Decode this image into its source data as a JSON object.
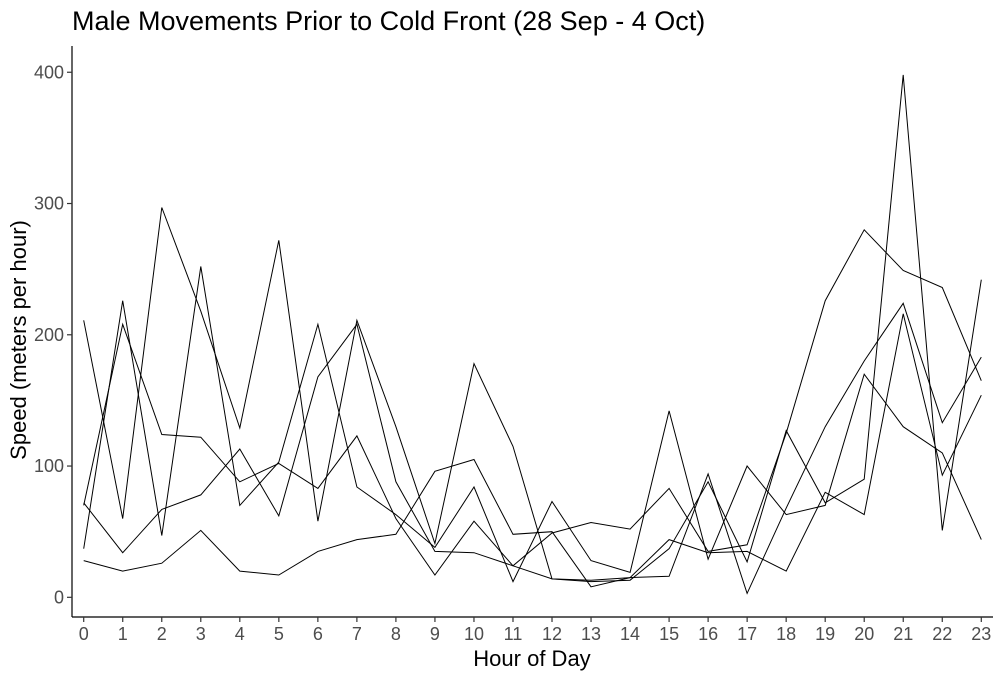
{
  "chart_data": {
    "type": "line",
    "title": "Male Movements Prior to Cold Front (28 Sep - 4 Oct)",
    "xlabel": "Hour of Day",
    "ylabel": "Speed (meters per hour)",
    "x": [
      0,
      1,
      2,
      3,
      4,
      5,
      6,
      7,
      8,
      9,
      10,
      11,
      12,
      13,
      14,
      15,
      16,
      17,
      18,
      19,
      20,
      21,
      22,
      23
    ],
    "xlim": [
      -0.3,
      23.3
    ],
    "ylim": [
      -15,
      420
    ],
    "yticks": [
      0,
      100,
      200,
      300,
      400
    ],
    "grid": false,
    "legend": "none",
    "line_color": "#000000",
    "series": [
      {
        "values": [
          211,
          60,
          297,
          218,
          129,
          272,
          58,
          211,
          130,
          41,
          178,
          115,
          14,
          12,
          13,
          37,
          88,
          27,
          127,
          72,
          90,
          398,
          51,
          242
        ]
      },
      {
        "values": [
          37,
          226,
          47,
          252,
          70,
          103,
          208,
          84,
          63,
          38,
          84,
          12,
          73,
          28,
          19,
          142,
          29,
          100,
          63,
          70,
          170,
          130,
          110,
          44
        ]
      },
      {
        "values": [
          70,
          208,
          124,
          122,
          88,
          102,
          83,
          123,
          60,
          17,
          58,
          24,
          49,
          57,
          52,
          83,
          35,
          40,
          125,
          226,
          280,
          249,
          236,
          165
        ]
      },
      {
        "values": [
          28,
          20,
          26,
          51,
          20,
          17,
          35,
          44,
          48,
          96,
          105,
          48,
          50,
          8,
          15,
          16,
          94,
          3,
          68,
          130,
          180,
          224,
          133,
          183
        ]
      },
      {
        "values": [
          72,
          34,
          67,
          78,
          113,
          62,
          168,
          208,
          88,
          35,
          34,
          24,
          14,
          13,
          15,
          44,
          34,
          35,
          20,
          80,
          63,
          216,
          93,
          154
        ]
      }
    ]
  }
}
